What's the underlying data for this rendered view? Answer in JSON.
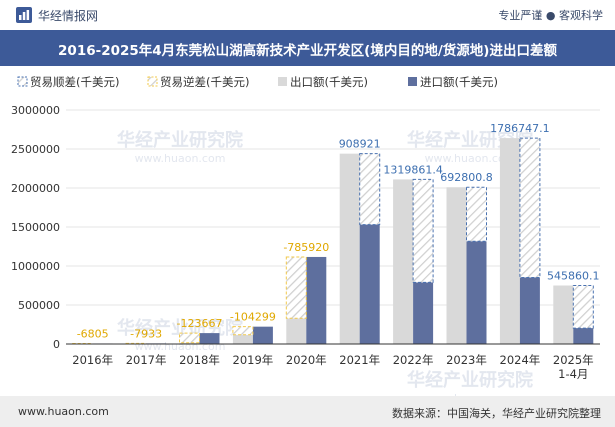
{
  "header": {
    "brand": "华经情报网",
    "tagline": "专业严谨 ● 客观科学",
    "title": "2016-2025年4月东莞松山湖高新技术产业开发区(境内目的地/货源地)进出口差额"
  },
  "footer": {
    "url": "www.huaon.com",
    "source": "数据来源：中国海关，华经产业研究院整理"
  },
  "watermark": "华经产业研究院",
  "watermark_url": "www.huaon.com",
  "colors": {
    "title_bg": "#3d5a98",
    "export": "#d9d9d9",
    "import": "#5e6f9e",
    "surplus_border": "#4a72b0",
    "deficit_border": "#f2c94c"
  },
  "chart_data": {
    "type": "bar",
    "categories": [
      "2016年",
      "2017年",
      "2018年",
      "2019年",
      "2020年",
      "2021年",
      "2022年",
      "2023年",
      "2024年",
      "2025年\n1-4月"
    ],
    "legend": [
      {
        "key": "surplus",
        "label": "贸易顺差(千美元)"
      },
      {
        "key": "deficit",
        "label": "贸易逆差(千美元)"
      },
      {
        "key": "export",
        "label": "出口额(千美元)"
      },
      {
        "key": "import",
        "label": "进口额(千美元)"
      }
    ],
    "export": [
      0,
      0,
      16000,
      118000,
      330000,
      2440000,
      2110000,
      2010000,
      2640000,
      750000
    ],
    "import": [
      6805,
      7933,
      139667,
      222299,
      1115920,
      1531079,
      790138,
      1317199,
      853253,
      204140
    ],
    "balance": [
      -6805,
      -7933,
      -123667,
      -104299,
      -785920,
      908921,
      1319861.4,
      692800.8,
      1786747.1,
      545860.1
    ],
    "balance_labels": [
      "-6805",
      "-7933",
      "-123667",
      "-104299",
      "-785920",
      "908921",
      "1319861.4",
      "692800.8",
      "1786747.1",
      "545860.1"
    ],
    "yticks": [
      "0",
      "500000",
      "1000000",
      "1500000",
      "2000000",
      "2500000",
      "3000000"
    ],
    "ylim": [
      0,
      3000000
    ],
    "legend_position": "top-left"
  }
}
